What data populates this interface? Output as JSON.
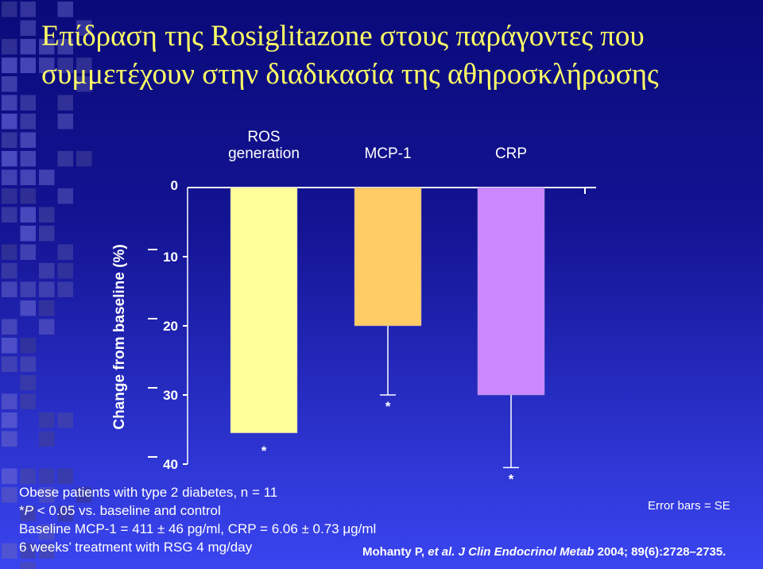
{
  "title": {
    "line1": "Επίδραση της Rosiglitazone στους παράγοντες που",
    "line2": "συμμετέχουν στην διαδικασία της αθηροσκλήρωσης"
  },
  "colors": {
    "title": "#ffff66",
    "text": "#ffffff",
    "bar_ros": "#ffff99",
    "bar_mcp": "#ffcc66",
    "bar_crp": "#cc88ff",
    "background_top": "#0a0a7a",
    "background_bottom": "#3a45f0"
  },
  "chart_data": {
    "type": "bar",
    "ylabel": "Change from baseline (%)",
    "ylim": [
      -40,
      0
    ],
    "yticks": [
      {
        "value": 0,
        "label": "0"
      },
      {
        "value": -10,
        "label": "10"
      },
      {
        "value": -20,
        "label": "20"
      },
      {
        "value": -30,
        "label": "30"
      },
      {
        "value": -40,
        "label": "40"
      }
    ],
    "categories": [
      {
        "label_lines": [
          "ROS",
          "generation"
        ],
        "value": -35.5,
        "error": 0,
        "significance": "*"
      },
      {
        "label_lines": [
          "MCP-1"
        ],
        "value": -20.0,
        "error": 10.0,
        "significance": "*"
      },
      {
        "label_lines": [
          "CRP"
        ],
        "value": -30.0,
        "error": 10.5,
        "significance": "*"
      }
    ],
    "error_note": "Error bars = SE"
  },
  "footnotes": {
    "line1": "Obese patients with type 2 diabetes, n = 11",
    "line2_prefix": "*",
    "line2_p": "P",
    "line2_rest": " < 0.05 vs. baseline and control",
    "line3": "Baseline MCP-1 = 411 ± 46 pg/ml, CRP = 6.06 ± 0.73 μg/ml",
    "line4": "6 weeks’ treatment with RSG 4 mg/day"
  },
  "citation": {
    "authors": "Mohanty P, ",
    "etal": "et al.",
    "journal": " J Clin Endocrinol Metab",
    "details": " 2004; 89(6):2728–2735."
  }
}
